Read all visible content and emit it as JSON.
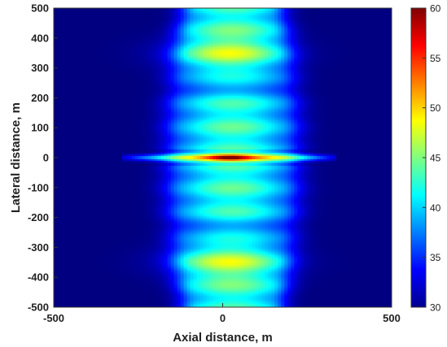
{
  "chart_data": {
    "type": "heatmap",
    "title": "",
    "xlabel": "Axial distance, m",
    "ylabel": "Lateral distance, m",
    "xlim": [
      -500,
      500
    ],
    "ylim": [
      -500,
      500
    ],
    "xticks": [
      -500,
      0,
      500
    ],
    "yticks": [
      500,
      400,
      300,
      200,
      100,
      0,
      -100,
      -200,
      -300,
      -400,
      -500
    ],
    "colorbar": {
      "range": [
        30,
        60
      ],
      "ticks": [
        60,
        55,
        50,
        45,
        40,
        35,
        30
      ],
      "colormap": "jet"
    },
    "background_level": 30,
    "features": [
      {
        "name": "main beam band",
        "x_range": [
          -250,
          320
        ],
        "level": 43
      },
      {
        "name": "upper lobe",
        "x": 0,
        "y": 350,
        "level": 46
      },
      {
        "name": "lower lobe",
        "x": 0,
        "y": -350,
        "level": 46
      },
      {
        "name": "central peak",
        "x": 20,
        "y": 0,
        "level": 53
      },
      {
        "name": "axial streak",
        "x_range": [
          -300,
          340
        ],
        "y": 0,
        "level": 40
      }
    ],
    "grid": false
  }
}
